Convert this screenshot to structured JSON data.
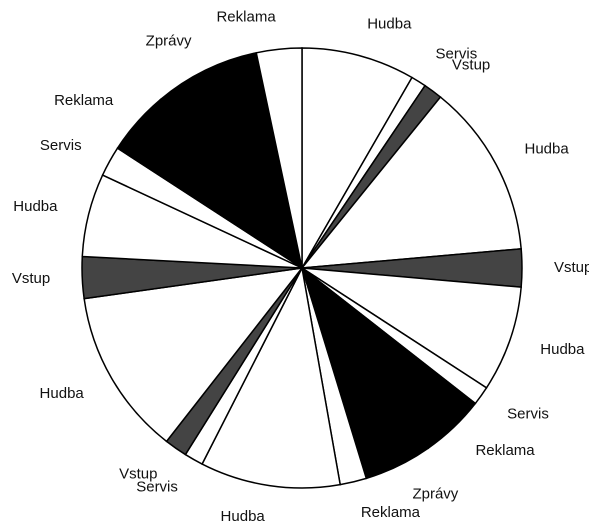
{
  "chart_data": {
    "type": "pie",
    "categories": [
      "Hudba",
      "Servis",
      "Vstup",
      "Hudba",
      "Vstup",
      "Hudba",
      "Servis",
      "Reklama",
      "Zprávy",
      "Reklama",
      "Hudba",
      "Servis",
      "Vstup",
      "Hudba",
      "Vstup",
      "Hudba",
      "Servis",
      "Reklama",
      "Zprávy",
      "Reklama"
    ],
    "values": [
      30,
      4,
      5,
      46,
      10,
      28,
      5,
      17,
      18,
      7,
      37,
      5,
      6,
      44,
      11,
      22,
      8,
      17,
      28,
      12
    ],
    "colors": [
      "#ffffff",
      "#ffffff",
      "#444444",
      "#ffffff",
      "#444444",
      "#ffffff",
      "#ffffff",
      "#000000",
      "#000000",
      "#ffffff",
      "#ffffff",
      "#ffffff",
      "#444444",
      "#ffffff",
      "#444444",
      "#ffffff",
      "#ffffff",
      "#000000",
      "#000000",
      "#ffffff"
    ]
  }
}
